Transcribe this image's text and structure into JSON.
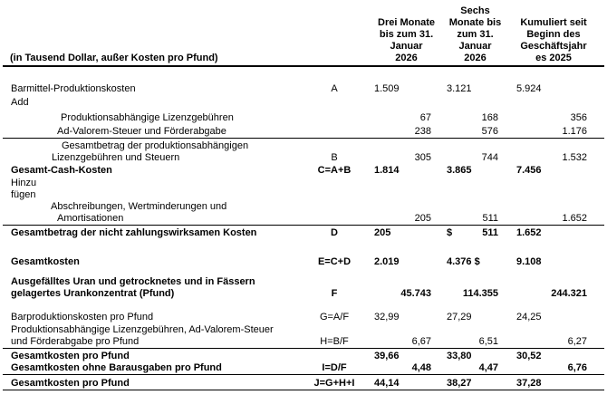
{
  "table": {
    "unit_note": "(in Tausend Dollar, außer Kosten pro Pfund)",
    "columns": [
      {
        "name": "col-drei-monate",
        "lines": [
          "Drei Monate",
          "bis zum 31.",
          "Januar",
          "2026"
        ]
      },
      {
        "name": "col-sechs-monate",
        "lines": [
          "Sechs",
          "Monate bis",
          "zum 31.",
          "Januar",
          "2026"
        ]
      },
      {
        "name": "col-kumuliert",
        "lines": [
          "Kumuliert seit",
          "Beginn des",
          "Geschäftsjahr",
          "es 2025"
        ]
      }
    ],
    "rows": [
      {
        "name": "row-barmittel-produktionskosten",
        "bold": false,
        "letter": "A",
        "gap": 18,
        "labels": [
          {
            "t": "Barmittel-Produktionskosten",
            "i": 9
          }
        ],
        "values": [
          {
            "t": "1.509",
            "a": "l"
          },
          {
            "t": "3.121",
            "a": "l"
          },
          {
            "t": "5.924",
            "a": "l"
          }
        ]
      },
      {
        "name": "row-add",
        "bold": false,
        "letter": "",
        "gap": 2,
        "labels": [
          {
            "t": "Add",
            "i": 9
          }
        ],
        "values": [
          null,
          null,
          null
        ]
      },
      {
        "name": "row-produktionsabhaengige-lizenzgebuehren",
        "bold": false,
        "letter": "",
        "gap": 4,
        "labels": [
          {
            "t": "Produktionsabhängige Lizenzgebühren",
            "i": 64
          }
        ],
        "values": [
          {
            "t": "67",
            "a": "r"
          },
          {
            "t": "168",
            "a": "r"
          },
          {
            "t": "356",
            "a": "r"
          }
        ]
      },
      {
        "name": "row-ad-valorem-steuer",
        "bold": false,
        "letter": "",
        "gap": 2,
        "rule": true,
        "labels": [
          {
            "t": "Ad-Valorem-Steuer und Förderabgabe",
            "i": 60
          }
        ],
        "values": [
          {
            "t": "238",
            "a": "r"
          },
          {
            "t": "576",
            "a": "r"
          },
          {
            "t": "1.176",
            "a": "r"
          }
        ]
      },
      {
        "name": "row-gesamtbetrag-lizenzgebuehren-steuern",
        "bold": false,
        "letter": "B",
        "gap": 2,
        "labels": [
          {
            "t": "Gesamtbetrag der produktionsabhängigen",
            "i": 65
          },
          {
            "t": "Lizenzgebühren und Steuern",
            "i": 54
          }
        ],
        "values": [
          {
            "t": "305",
            "a": "r"
          },
          {
            "t": "744",
            "a": "r"
          },
          {
            "t": "1.532",
            "a": "r"
          }
        ]
      },
      {
        "name": "row-gesamt-cash-kosten",
        "bold": true,
        "letter": "C=A+B",
        "gap": 1,
        "labels": [
          {
            "t": "Gesamt-Cash-Kosten",
            "i": 9
          }
        ],
        "values": [
          {
            "t": "1.814",
            "a": "l"
          },
          {
            "t": "3.865",
            "a": "l"
          },
          {
            "t": "7.456",
            "a": "l"
          }
        ]
      },
      {
        "name": "row-hinzu-fuegen",
        "bold": false,
        "letter": "",
        "gap": 1,
        "labels": [
          {
            "t": "Hinzu",
            "i": 9
          },
          {
            "t": "fügen",
            "i": 9
          }
        ],
        "values": [
          null,
          null,
          null
        ]
      },
      {
        "name": "row-abschreibungen-amortisationen",
        "bold": false,
        "letter": "",
        "gap": 0,
        "rule": true,
        "labels": [
          {
            "t": "Abschreibungen, Wertminderungen und",
            "i": 53
          },
          {
            "t": "Amortisationen",
            "i": 60
          }
        ],
        "values": [
          {
            "t": "205",
            "a": "r"
          },
          {
            "t": "511",
            "a": "r"
          },
          {
            "t": "1.652",
            "a": "r"
          }
        ]
      },
      {
        "name": "row-nicht-zahlungswirksame-kosten",
        "bold": true,
        "letter": "D",
        "gap": 2,
        "labels": [
          {
            "t": "Gesamtbetrag der nicht zahlungswirksamen Kosten",
            "i": 9
          }
        ],
        "values": [
          {
            "t": "205",
            "a": "l"
          },
          {
            "split": true,
            "l": "$",
            "r": "511"
          },
          {
            "t": "1.652",
            "a": "l"
          }
        ]
      },
      {
        "name": "row-gesamtkosten",
        "bold": true,
        "letter": "E=C+D",
        "gap": 19,
        "labels": [
          {
            "t": "Gesamtkosten",
            "i": 9
          }
        ],
        "values": [
          {
            "t": "2.019",
            "a": "l"
          },
          {
            "t": "4.376 $",
            "a": "l"
          },
          {
            "t": "9.108",
            "a": "l"
          }
        ]
      },
      {
        "name": "row-ausgefaelltes-uran",
        "bold": true,
        "letter": "F",
        "gap": 9,
        "labels": [
          {
            "t": "Ausgefälltes Uran und getrocknetes und in Fässern",
            "i": 9
          },
          {
            "t": "gelagertes Urankonzentrat (Pfund)",
            "i": 9
          }
        ],
        "values": [
          {
            "t": "45.743",
            "a": "r"
          },
          {
            "t": "114.355",
            "a": "r"
          },
          {
            "t": "244.321",
            "a": "r"
          }
        ]
      },
      {
        "name": "row-barproduktionskosten-pro-pfund",
        "bold": false,
        "letter": "G=A/F",
        "gap": 13,
        "labels": [
          {
            "t": "Barproduktionskosten pro Pfund",
            "i": 9
          }
        ],
        "values": [
          {
            "t": "32,99",
            "a": "l"
          },
          {
            "t": "27,29",
            "a": "l"
          },
          {
            "t": "24,25",
            "a": "l"
          }
        ]
      },
      {
        "name": "row-lizenzgebuehren-pro-pfund",
        "bold": false,
        "letter": "H=B/F",
        "gap": 1,
        "rule": true,
        "labels": [
          {
            "t": "Produktionsabhängige Lizenzgebühren, Ad-Valorem-Steuer",
            "i": 9
          },
          {
            "t": "und Förderabgabe pro Pfund",
            "i": 9
          }
        ],
        "values": [
          {
            "t": "6,67",
            "a": "r"
          },
          {
            "t": "6,51",
            "a": "r"
          },
          {
            "t": "6,27",
            "a": "r"
          }
        ]
      },
      {
        "name": "row-gesamtkosten-pro-pfund",
        "bold": true,
        "letter": "",
        "gap": 2,
        "labels": [
          {
            "t": "Gesamtkosten pro Pfund",
            "i": 9
          }
        ],
        "values": [
          {
            "t": "39,66",
            "a": "l"
          },
          {
            "t": "33,80",
            "a": "l"
          },
          {
            "t": "30,52",
            "a": "l"
          }
        ]
      },
      {
        "name": "row-gesamtkosten-ohne-barausgaben",
        "bold": true,
        "letter": "I=D/F",
        "gap": 0,
        "rule": true,
        "labels": [
          {
            "t": "Gesamtkosten ohne Barausgaben pro Pfund",
            "i": 9
          }
        ],
        "values": [
          {
            "t": "4,48",
            "a": "r"
          },
          {
            "t": "4,47",
            "a": "r"
          },
          {
            "t": "6,76",
            "a": "r"
          }
        ]
      },
      {
        "name": "row-gesamtkosten-pro-pfund-total",
        "bold": true,
        "letter": "J=G+H+I",
        "gap": 3,
        "rule": true,
        "labels": [
          {
            "t": "Gesamtkosten pro Pfund",
            "i": 9
          }
        ],
        "values": [
          {
            "t": "44,14",
            "a": "l"
          },
          {
            "t": "38,27",
            "a": "l"
          },
          {
            "t": "37,28",
            "a": "l"
          }
        ]
      }
    ]
  }
}
